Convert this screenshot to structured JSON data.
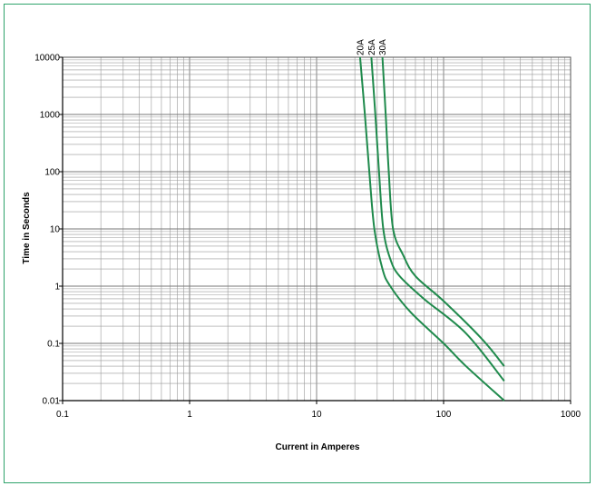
{
  "chart_data": {
    "type": "line",
    "xlabel": "Current in Amperes",
    "ylabel": "Time in Seconds",
    "xscale": "log",
    "yscale": "log",
    "xlim": [
      0.1,
      1000
    ],
    "ylim": [
      0.01,
      10000
    ],
    "grid": true,
    "x_ticks": [
      "0.1",
      "1",
      "10",
      "100",
      "1000"
    ],
    "y_ticks": [
      "0.01",
      "0.1",
      "1",
      "10",
      "100",
      "1000",
      "10000"
    ],
    "series_color": "#1f8a4c",
    "series": [
      {
        "name": "20A",
        "points": [
          [
            22,
            10000
          ],
          [
            24,
            1000
          ],
          [
            26,
            100
          ],
          [
            28.5,
            10
          ],
          [
            33,
            2
          ],
          [
            38,
            1
          ],
          [
            55,
            0.35
          ],
          [
            100,
            0.1
          ],
          [
            150,
            0.04
          ],
          [
            300,
            0.01
          ]
        ]
      },
      {
        "name": "25A",
        "points": [
          [
            27,
            10000
          ],
          [
            29,
            1000
          ],
          [
            31,
            100
          ],
          [
            33.5,
            10
          ],
          [
            38,
            3
          ],
          [
            45,
            1.5
          ],
          [
            70,
            0.6
          ],
          [
            150,
            0.15
          ],
          [
            300,
            0.022
          ]
        ]
      },
      {
        "name": "30A",
        "points": [
          [
            33,
            10000
          ],
          [
            35,
            1000
          ],
          [
            37,
            100
          ],
          [
            40,
            10
          ],
          [
            48,
            3.5
          ],
          [
            60,
            1.5
          ],
          [
            100,
            0.55
          ],
          [
            200,
            0.12
          ],
          [
            300,
            0.04
          ]
        ]
      }
    ]
  }
}
